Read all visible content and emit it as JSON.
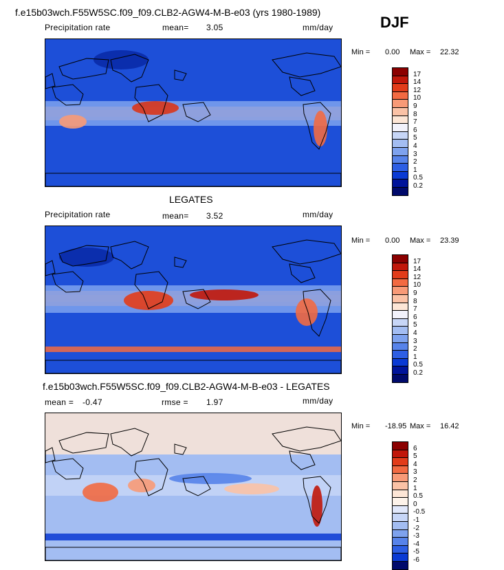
{
  "season": "DJF",
  "panels": [
    {
      "id": "model",
      "header": "f.e15b03wch.F55W5SC.f09_f09.CLB2-AGW4-M-B-e03 (yrs 1980-1989)",
      "variable": "Precipitation rate",
      "stat1_label": "mean=",
      "stat1_value": "3.05",
      "units": "mm/day",
      "min_label": "Min =",
      "min_value": "0.00",
      "max_label": "Max =",
      "max_value": "22.32",
      "colorbar": {
        "levels": [
          "17",
          "14",
          "12",
          "10",
          "9",
          "8",
          "7",
          "6",
          "5",
          "4",
          "3",
          "2",
          "1",
          "0.5",
          "0.2"
        ],
        "colors": [
          "#8b0000",
          "#c1170a",
          "#e23c1a",
          "#f26a42",
          "#f89a77",
          "#fbc2a6",
          "#fde6d6",
          "#f2f2fb",
          "#c7d6f7",
          "#a3bdf2",
          "#7ea2ee",
          "#5783ea",
          "#2d5ee4",
          "#0a3ad4",
          "#00149a",
          "#000a6b"
        ]
      }
    },
    {
      "id": "obs",
      "header": "LEGATES",
      "variable": "Precipitation rate",
      "stat1_label": "mean=",
      "stat1_value": "3.52",
      "units": "mm/day",
      "min_label": "Min =",
      "min_value": "0.00",
      "max_label": "Max =",
      "max_value": "23.39",
      "colorbar": {
        "levels": [
          "17",
          "14",
          "12",
          "10",
          "9",
          "8",
          "7",
          "6",
          "5",
          "4",
          "3",
          "2",
          "1",
          "0.5",
          "0.2"
        ],
        "colors": [
          "#8b0000",
          "#c1170a",
          "#e23c1a",
          "#f26a42",
          "#f89a77",
          "#fbc2a6",
          "#fde6d6",
          "#f2f2fb",
          "#c7d6f7",
          "#a3bdf2",
          "#7ea2ee",
          "#5783ea",
          "#2d5ee4",
          "#0a3ad4",
          "#00149a",
          "#000a6b"
        ]
      }
    },
    {
      "id": "diff",
      "header": "f.e15b03wch.F55W5SC.f09_f09.CLB2-AGW4-M-B-e03 - LEGATES",
      "stat1_label": "mean =",
      "stat1_value": "-0.47",
      "stat2_label": "rmse =",
      "stat2_value": "1.97",
      "units": "mm/day",
      "min_label": "Min =",
      "min_value": "-18.95",
      "max_label": "Max =",
      "max_value": "16.42",
      "colorbar": {
        "levels": [
          "6",
          "5",
          "4",
          "3",
          "2",
          "1",
          "0.5",
          "0",
          "-0.5",
          "-1",
          "-2",
          "-3",
          "-4",
          "-5",
          "-6"
        ],
        "colors": [
          "#8b0000",
          "#c1170a",
          "#e23c1a",
          "#f26a42",
          "#f89a77",
          "#fbc2a6",
          "#fde6d6",
          "#fdf3ea",
          "#e1e8fb",
          "#c7d6f7",
          "#a3bdf2",
          "#7ea2ee",
          "#5783ea",
          "#2d5ee4",
          "#0a3ad4",
          "#000a6b"
        ]
      }
    }
  ],
  "chart_data": [
    {
      "type": "heatmap",
      "title": "f.e15b03wch.F55W5SC.f09_f09.CLB2-AGW4-M-B-e03 (yrs 1980-1989)",
      "subtitle": "Precipitation rate",
      "season": "DJF",
      "units": "mm/day",
      "mean": 3.05,
      "min": 0.0,
      "max": 22.32,
      "contour_levels": [
        0.2,
        0.5,
        1,
        2,
        3,
        4,
        5,
        6,
        7,
        8,
        9,
        10,
        12,
        14,
        17
      ]
    },
    {
      "type": "heatmap",
      "title": "LEGATES",
      "subtitle": "Precipitation rate",
      "season": "DJF",
      "units": "mm/day",
      "mean": 3.52,
      "min": 0.0,
      "max": 23.39,
      "contour_levels": [
        0.2,
        0.5,
        1,
        2,
        3,
        4,
        5,
        6,
        7,
        8,
        9,
        10,
        12,
        14,
        17
      ]
    },
    {
      "type": "heatmap",
      "title": "f.e15b03wch.F55W5SC.f09_f09.CLB2-AGW4-M-B-e03 - LEGATES",
      "season": "DJF",
      "units": "mm/day",
      "mean": -0.47,
      "rmse": 1.97,
      "min": -18.95,
      "max": 16.42,
      "contour_levels": [
        -6,
        -5,
        -4,
        -3,
        -2,
        -1,
        -0.5,
        0,
        0.5,
        1,
        2,
        3,
        4,
        5,
        6
      ]
    }
  ]
}
